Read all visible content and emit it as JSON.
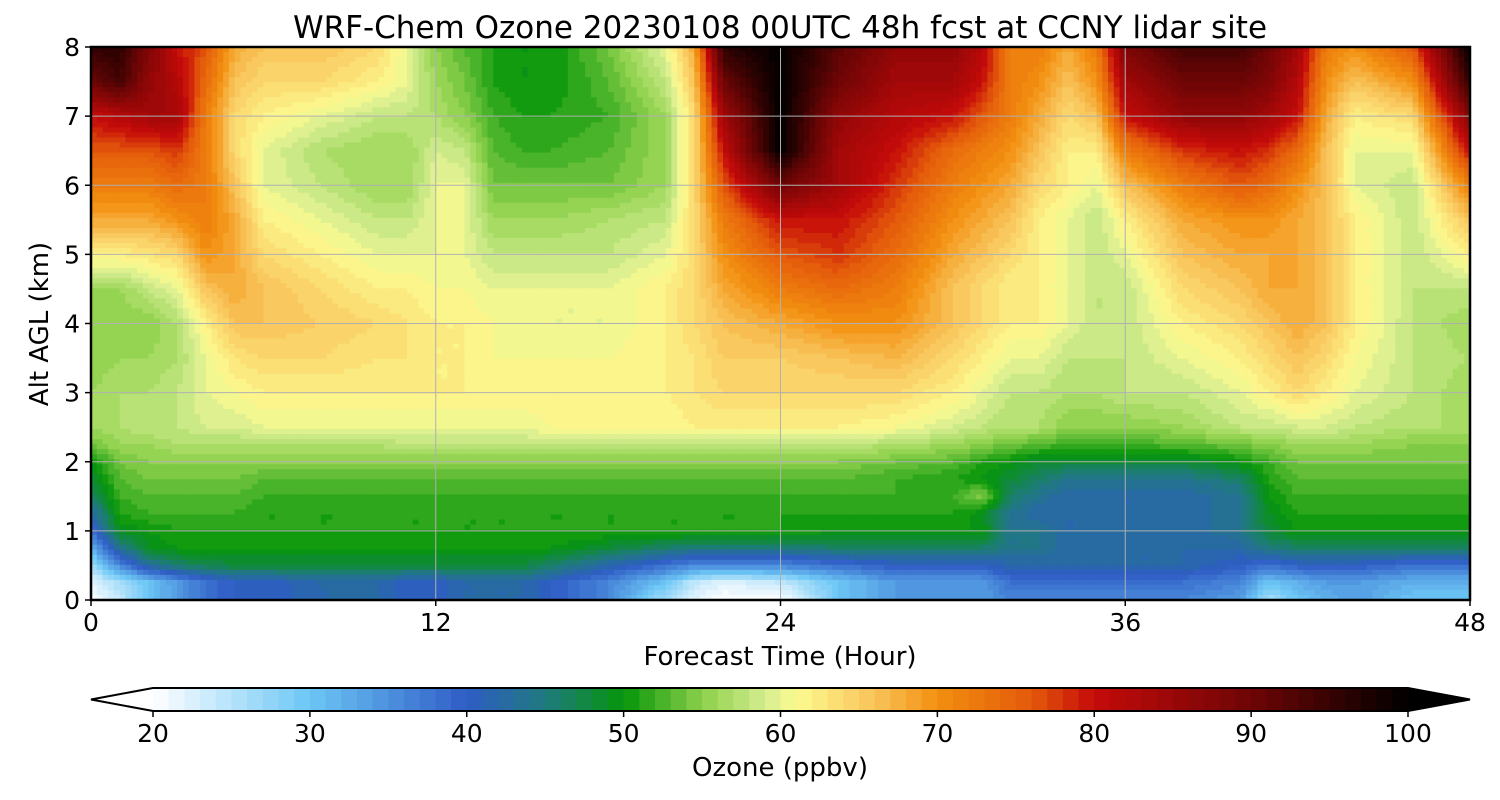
{
  "chart_data": {
    "type": "heatmap",
    "title": "WRF-Chem Ozone  20230108 00UTC 48h fcst at CCNY lidar site",
    "xlabel": "Forecast Time (Hour)",
    "ylabel": "Alt AGL (km)",
    "xlim": [
      0,
      48
    ],
    "ylim": [
      0,
      8
    ],
    "x_ticks": [
      0,
      12,
      24,
      36,
      48
    ],
    "y_ticks": [
      0,
      1,
      2,
      3,
      4,
      5,
      6,
      7,
      8
    ],
    "grid": true,
    "colorbar": {
      "label": "Ozone  (ppbv)",
      "range": [
        20,
        100
      ],
      "step": 1,
      "ticks": [
        20,
        30,
        40,
        50,
        60,
        70,
        80,
        90,
        100
      ],
      "extend": "both",
      "placement": "bottom",
      "stops": [
        {
          "v": 20,
          "c": "#ffffff"
        },
        {
          "v": 30,
          "c": "#6cc6f5"
        },
        {
          "v": 40,
          "c": "#2f5cc6"
        },
        {
          "v": 45,
          "c": "#1f7a7e"
        },
        {
          "v": 50,
          "c": "#05950a"
        },
        {
          "v": 55,
          "c": "#8cd04a"
        },
        {
          "v": 59,
          "c": "#d4ec90"
        },
        {
          "v": 61,
          "c": "#fcfa90"
        },
        {
          "v": 66,
          "c": "#f9c35a"
        },
        {
          "v": 70,
          "c": "#f28f10"
        },
        {
          "v": 76,
          "c": "#e45a0a"
        },
        {
          "v": 80,
          "c": "#c50a0a"
        },
        {
          "v": 90,
          "c": "#6e0505"
        },
        {
          "v": 100,
          "c": "#000000"
        }
      ]
    },
    "grid_x": [
      0,
      1,
      2,
      3,
      4,
      5,
      6,
      8,
      10,
      11,
      12,
      13,
      14,
      15,
      16,
      18,
      20,
      21,
      22,
      24,
      26,
      28,
      30,
      31,
      32,
      33,
      34,
      35,
      36,
      38,
      40,
      41,
      42,
      43,
      44,
      46,
      48
    ],
    "grid_y": [
      0,
      0.25,
      0.5,
      0.75,
      1,
      1.25,
      1.5,
      1.75,
      2,
      2.25,
      2.5,
      3,
      3.5,
      4,
      4.5,
      5,
      5.5,
      6,
      6.5,
      7,
      7.5,
      8
    ],
    "ozone_ppbv": [
      [
        20,
        24,
        30,
        34,
        38,
        40,
        40,
        42,
        42,
        40,
        40,
        42,
        42,
        42,
        40,
        36,
        26,
        22,
        20,
        20,
        30,
        34,
        34,
        34,
        36,
        36,
        36,
        36,
        36,
        36,
        34,
        26,
        30,
        32,
        34,
        30,
        30
      ],
      [
        22,
        26,
        30,
        34,
        38,
        40,
        40,
        42,
        42,
        40,
        40,
        42,
        42,
        42,
        40,
        36,
        30,
        24,
        22,
        24,
        30,
        34,
        34,
        34,
        38,
        38,
        38,
        38,
        38,
        38,
        36,
        30,
        32,
        34,
        34,
        32,
        32
      ],
      [
        26,
        36,
        43,
        46,
        47,
        48,
        48,
        48,
        48,
        48,
        48,
        48,
        48,
        48,
        46,
        42,
        38,
        36,
        36,
        36,
        38,
        40,
        40,
        40,
        42,
        42,
        42,
        42,
        42,
        42,
        40,
        38,
        40,
        40,
        40,
        38,
        38
      ],
      [
        32,
        44,
        49,
        50,
        50,
        50,
        50,
        50,
        50,
        50,
        50,
        50,
        50,
        50,
        50,
        48,
        46,
        45,
        45,
        45,
        46,
        46,
        46,
        46,
        44,
        44,
        42,
        42,
        42,
        42,
        42,
        45,
        46,
        46,
        46,
        46,
        46
      ],
      [
        38,
        49,
        50,
        51,
        51,
        51,
        51,
        51,
        51,
        51,
        51,
        51,
        51,
        51,
        51,
        51,
        51,
        51,
        51,
        51,
        50,
        50,
        50,
        50,
        44,
        44,
        42,
        42,
        42,
        42,
        44,
        48,
        50,
        50,
        50,
        50,
        50
      ],
      [
        42,
        51,
        52,
        52,
        52,
        52,
        51,
        51,
        51,
        51,
        51,
        51,
        51,
        51,
        51,
        51,
        51,
        51,
        51,
        51,
        51,
        51,
        51,
        49,
        44,
        42,
        42,
        42,
        42,
        42,
        44,
        49,
        51,
        51,
        51,
        51,
        51
      ],
      [
        46,
        52,
        53,
        53,
        53,
        53,
        52,
        52,
        52,
        52,
        52,
        52,
        52,
        52,
        52,
        52,
        52,
        52,
        52,
        52,
        52,
        52,
        52,
        55,
        46,
        44,
        42,
        42,
        42,
        42,
        44,
        50,
        52,
        52,
        52,
        52,
        52
      ],
      [
        48,
        53,
        54,
        54,
        54,
        54,
        53,
        53,
        53,
        53,
        53,
        53,
        53,
        53,
        53,
        53,
        53,
        53,
        53,
        53,
        53,
        52,
        51,
        50,
        48,
        46,
        44,
        44,
        44,
        44,
        46,
        51,
        53,
        53,
        53,
        53,
        53
      ],
      [
        50,
        54,
        55,
        55,
        55,
        55,
        55,
        55,
        55,
        55,
        55,
        55,
        55,
        55,
        55,
        55,
        55,
        55,
        55,
        55,
        55,
        54,
        53,
        51,
        50,
        48,
        48,
        48,
        48,
        48,
        50,
        52,
        54,
        54,
        54,
        54,
        54
      ],
      [
        54,
        56,
        56,
        57,
        57,
        57,
        57,
        57,
        57,
        58,
        58,
        58,
        58,
        58,
        58,
        58,
        58,
        58,
        58,
        58,
        58,
        57,
        56,
        55,
        54,
        53,
        52,
        52,
        52,
        53,
        54,
        55,
        56,
        56,
        56,
        55,
        55
      ],
      [
        56,
        57,
        58,
        58,
        59,
        59,
        60,
        60,
        60,
        60,
        60,
        60,
        60,
        60,
        61,
        61,
        61,
        62,
        62,
        62,
        62,
        61,
        59,
        58,
        57,
        57,
        55,
        55,
        55,
        56,
        58,
        58,
        59,
        59,
        58,
        57,
        57
      ],
      [
        56,
        57,
        57,
        58,
        60,
        61,
        62,
        62,
        62,
        62,
        62,
        62,
        62,
        62,
        62,
        62,
        62,
        63,
        64,
        64,
        64,
        64,
        62,
        60,
        58,
        58,
        57,
        57,
        58,
        58,
        60,
        62,
        64,
        62,
        60,
        58,
        56
      ],
      [
        55,
        56,
        56,
        57,
        60,
        63,
        64,
        64,
        63,
        63,
        62,
        62,
        61,
        61,
        61,
        61,
        62,
        63,
        65,
        65,
        66,
        67,
        64,
        62,
        60,
        60,
        58,
        58,
        58,
        60,
        62,
        64,
        66,
        64,
        61,
        58,
        57
      ],
      [
        55,
        55,
        55,
        57,
        62,
        66,
        66,
        65,
        64,
        63,
        62,
        62,
        61,
        60,
        60,
        60,
        62,
        64,
        66,
        68,
        70,
        70,
        66,
        64,
        62,
        62,
        60,
        58,
        58,
        62,
        64,
        66,
        68,
        66,
        62,
        58,
        56
      ],
      [
        56,
        56,
        58,
        60,
        66,
        68,
        66,
        64,
        62,
        62,
        61,
        61,
        60,
        60,
        60,
        60,
        62,
        64,
        68,
        72,
        74,
        72,
        66,
        64,
        62,
        62,
        60,
        58,
        58,
        64,
        66,
        68,
        68,
        66,
        62,
        58,
        58
      ],
      [
        62,
        62,
        63,
        64,
        70,
        68,
        64,
        62,
        60,
        60,
        60,
        60,
        58,
        58,
        58,
        58,
        60,
        64,
        70,
        76,
        78,
        74,
        68,
        66,
        64,
        62,
        60,
        58,
        60,
        66,
        68,
        68,
        68,
        66,
        62,
        58,
        62
      ],
      [
        68,
        68,
        68,
        70,
        72,
        68,
        62,
        60,
        58,
        58,
        60,
        60,
        56,
        56,
        56,
        57,
        58,
        64,
        72,
        80,
        80,
        76,
        70,
        68,
        66,
        62,
        60,
        58,
        62,
        68,
        70,
        70,
        68,
        66,
        62,
        58,
        66
      ],
      [
        72,
        72,
        72,
        74,
        72,
        66,
        60,
        58,
        56,
        56,
        60,
        60,
        54,
        54,
        54,
        54,
        56,
        64,
        76,
        90,
        84,
        78,
        72,
        70,
        68,
        64,
        62,
        60,
        66,
        72,
        76,
        74,
        70,
        66,
        60,
        58,
        72
      ],
      [
        76,
        76,
        76,
        78,
        72,
        64,
        60,
        57,
        56,
        56,
        59,
        58,
        53,
        52,
        52,
        53,
        56,
        64,
        80,
        100,
        84,
        80,
        74,
        72,
        70,
        66,
        62,
        62,
        72,
        78,
        80,
        78,
        74,
        66,
        60,
        60,
        80
      ],
      [
        80,
        82,
        84,
        84,
        72,
        64,
        62,
        60,
        58,
        58,
        57,
        55,
        52,
        51,
        51,
        52,
        56,
        64,
        84,
        100,
        86,
        82,
        80,
        76,
        72,
        68,
        64,
        66,
        80,
        86,
        86,
        84,
        80,
        68,
        62,
        64,
        88
      ],
      [
        90,
        94,
        86,
        82,
        74,
        66,
        64,
        64,
        62,
        60,
        56,
        54,
        51,
        50,
        50,
        53,
        58,
        66,
        90,
        100,
        90,
        84,
        84,
        80,
        72,
        70,
        66,
        70,
        84,
        90,
        90,
        88,
        82,
        70,
        66,
        70,
        96
      ],
      [
        96,
        96,
        88,
        80,
        76,
        68,
        66,
        66,
        64,
        60,
        55,
        53,
        51,
        50,
        50,
        54,
        60,
        68,
        96,
        100,
        92,
        86,
        86,
        82,
        72,
        72,
        68,
        72,
        88,
        94,
        94,
        90,
        84,
        72,
        70,
        76,
        100
      ]
    ]
  }
}
